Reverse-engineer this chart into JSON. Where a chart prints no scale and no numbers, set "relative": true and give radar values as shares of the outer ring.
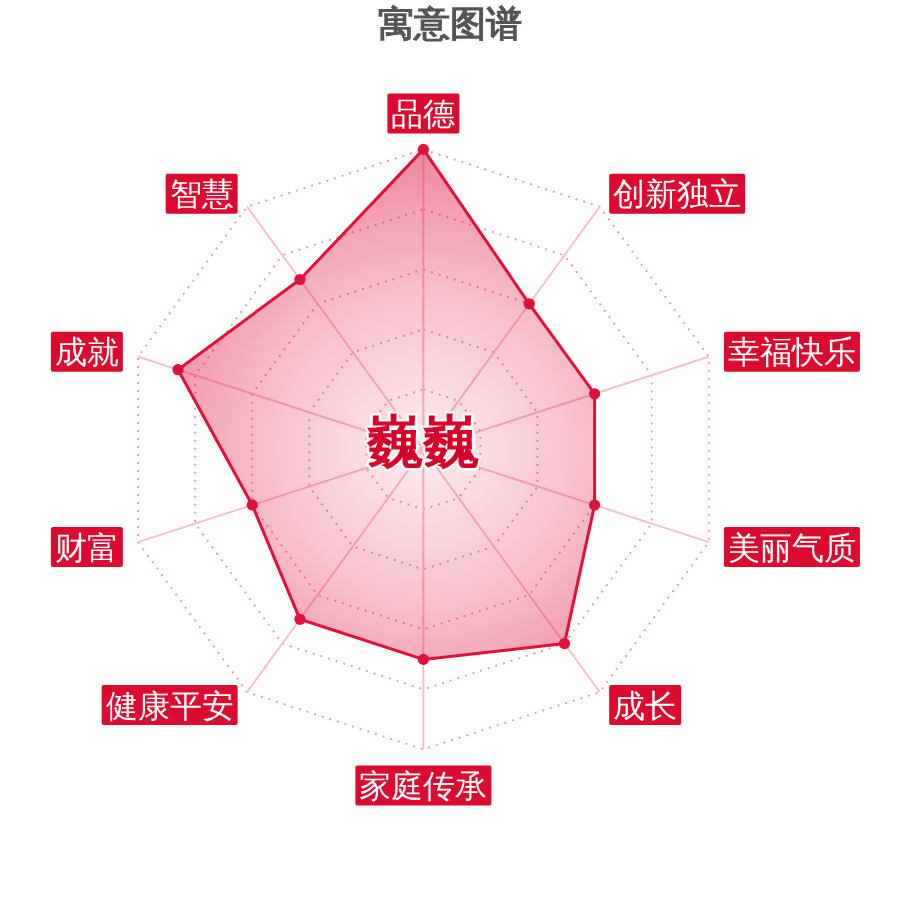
{
  "chart_data": {
    "type": "radar",
    "title": "寓意图谱",
    "categories": [
      "品德",
      "创新独立",
      "幸福快乐",
      "美丽气质",
      "成长",
      "家庭传承",
      "健康平安",
      "财富",
      "成就",
      "智慧"
    ],
    "series": [
      {
        "color": "#e0103a",
        "values": [
          1,
          0.6,
          0.6,
          0.6,
          0.8,
          0.7,
          0.7,
          0.6,
          0.86,
          0.7
        ]
      }
    ],
    "relative": true,
    "grid": true,
    "marker": "circle",
    "annotations": [
      "巍巍"
    ]
  }
}
